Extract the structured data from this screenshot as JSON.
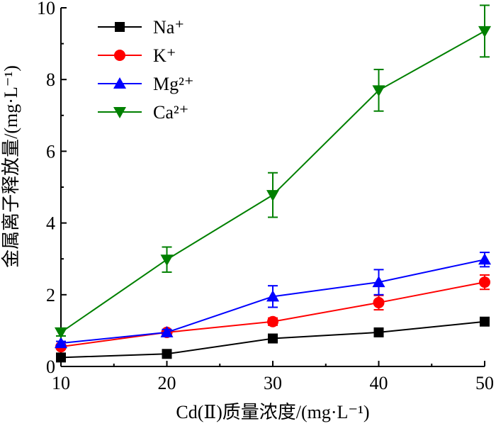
{
  "chart_data": {
    "type": "line",
    "xlabel": "Cd(Ⅱ)质量浓度/(mg·L⁻¹)",
    "ylabel": "金属离子释放量/(mg·L⁻¹)",
    "x": [
      10,
      20,
      30,
      40,
      50
    ],
    "xlim": [
      10,
      50
    ],
    "ylim": [
      0,
      10
    ],
    "xticks": [
      "10",
      "20",
      "30",
      "40",
      "50"
    ],
    "yticks": [
      "0",
      "2",
      "4",
      "6",
      "8",
      "10"
    ],
    "grid": false,
    "legend_position": "top-left",
    "series": [
      {
        "name": "Na⁺",
        "color": "#000000",
        "marker": "square",
        "values": [
          0.25,
          0.35,
          0.78,
          0.95,
          1.25
        ],
        "errors": [
          0.05,
          0.08,
          0.08,
          0.06,
          0.08
        ]
      },
      {
        "name": "K⁺",
        "color": "#ff0000",
        "marker": "circle",
        "values": [
          0.55,
          0.95,
          1.25,
          1.78,
          2.35
        ],
        "errors": [
          0.05,
          0.08,
          0.1,
          0.2,
          0.2
        ]
      },
      {
        "name": "Mg²⁺",
        "color": "#0000ff",
        "marker": "triangle-up",
        "values": [
          0.65,
          0.95,
          1.95,
          2.35,
          2.98
        ],
        "errors": [
          0.05,
          0.08,
          0.3,
          0.35,
          0.2
        ]
      },
      {
        "name": "Ca²⁺",
        "color": "#008000",
        "marker": "triangle-down",
        "values": [
          0.95,
          2.98,
          4.78,
          7.7,
          9.35
        ],
        "errors": [
          0.1,
          0.35,
          0.62,
          0.58,
          0.72
        ]
      }
    ]
  }
}
